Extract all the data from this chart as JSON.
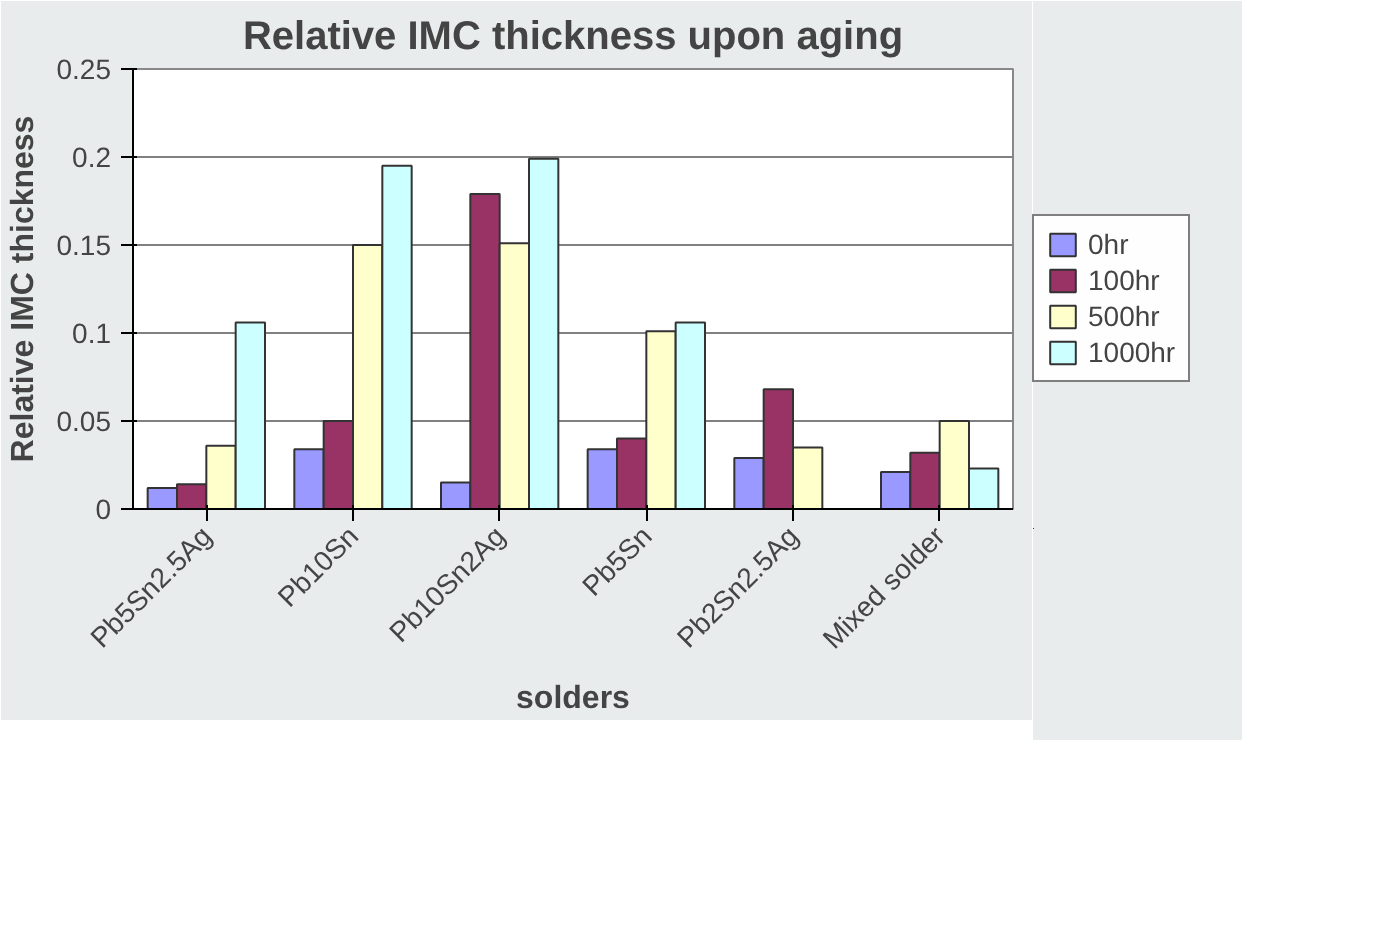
{
  "chart_data": {
    "type": "bar",
    "title": "Relative IMC thickness upon aging",
    "xlabel": "solders",
    "ylabel": "Relative IMC thickness",
    "categories": [
      "Pb5Sn2.5Ag",
      "Pb10Sn",
      "Pb10Sn2Ag",
      "Pb5Sn",
      "Pb2Sn2.5Ag",
      "Mixed solder"
    ],
    "series": [
      {
        "name": "0hr",
        "color": "#9999ff",
        "values": [
          0.012,
          0.034,
          0.015,
          0.034,
          0.029,
          0.021
        ]
      },
      {
        "name": "100hr",
        "color": "#993366",
        "values": [
          0.014,
          0.05,
          0.179,
          0.04,
          0.068,
          0.032
        ]
      },
      {
        "name": "500hr",
        "color": "#ffffcc",
        "values": [
          0.036,
          0.15,
          0.151,
          0.101,
          0.035,
          0.05
        ]
      },
      {
        "name": "1000hr",
        "color": "#ccffff",
        "values": [
          0.106,
          0.195,
          0.199,
          0.106,
          null,
          0.023
        ]
      }
    ],
    "ylim": [
      0,
      0.25
    ],
    "yticks": [
      0,
      0.05,
      0.1,
      0.15,
      0.2,
      0.25
    ],
    "grid": "y",
    "legend": "right"
  }
}
